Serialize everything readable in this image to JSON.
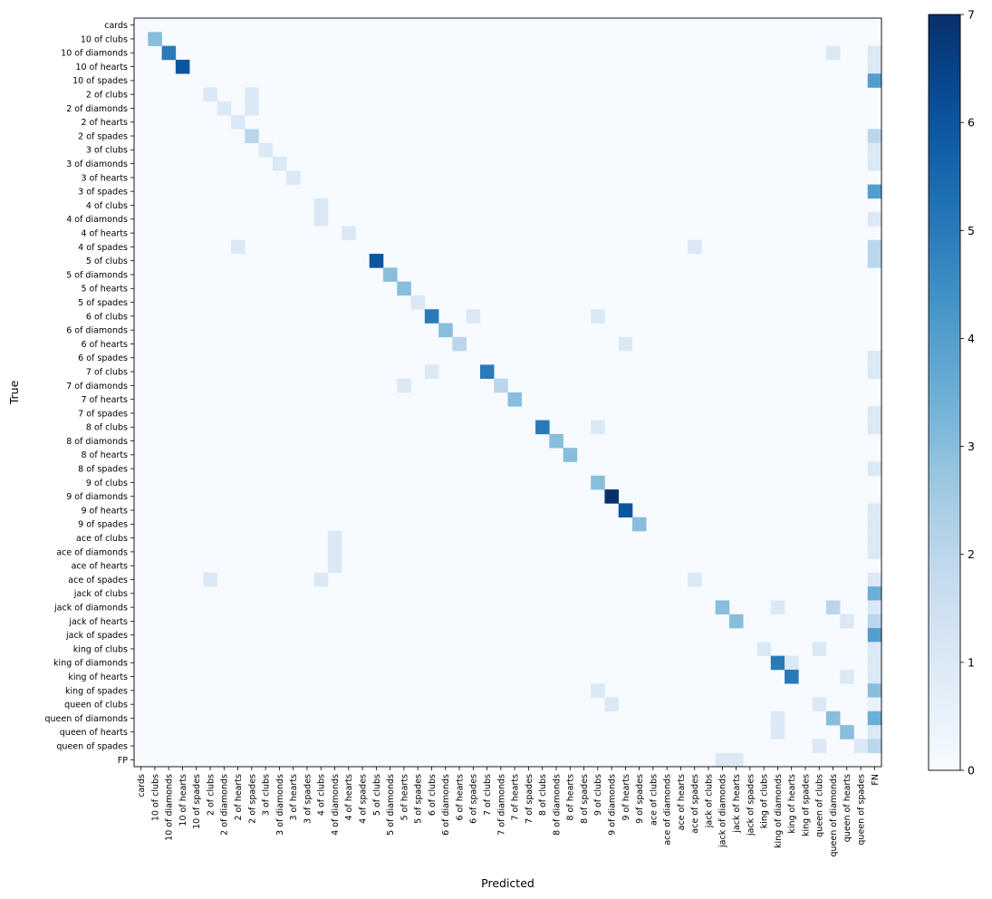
{
  "chart_data": {
    "type": "heatmap",
    "title": "",
    "xlabel": "Predicted",
    "ylabel": "True",
    "colormap": "Blues",
    "color_min": "#f7fbff",
    "color_max": "#08306b",
    "vmin": 0,
    "vmax": 7,
    "colorbar_ticks": [
      0,
      1,
      2,
      3,
      4,
      5,
      6,
      7
    ],
    "row_labels": [
      "cards",
      "10 of clubs",
      "10 of diamonds",
      "10 of hearts",
      "10 of spades",
      "2 of clubs",
      "2 of diamonds",
      "2 of hearts",
      "2 of spades",
      "3 of clubs",
      "3 of diamonds",
      "3 of hearts",
      "3 of spades",
      "4 of clubs",
      "4 of diamonds",
      "4 of hearts",
      "4 of spades",
      "5 of clubs",
      "5 of diamonds",
      "5 of hearts",
      "5 of spades",
      "6 of clubs",
      "6 of diamonds",
      "6 of hearts",
      "6 of spades",
      "7 of clubs",
      "7 of diamonds",
      "7 of hearts",
      "7 of spades",
      "8 of clubs",
      "8 of diamonds",
      "8 of hearts",
      "8 of spades",
      "9 of clubs",
      "9 of diamonds",
      "9 of hearts",
      "9 of spades",
      "ace of clubs",
      "ace of diamonds",
      "ace of hearts",
      "ace of spades",
      "jack  of clubs",
      "jack of diamonds",
      "jack of hearts",
      "jack of spades",
      "king of clubs",
      "king of diamonds",
      "king of hearts",
      "king of spades",
      "queen of clubs",
      "queen of diamonds",
      "queen of hearts",
      "queen of spades",
      "FP"
    ],
    "col_labels": [
      "cards",
      "10 of clubs",
      "10 of diamonds",
      "10 of hearts",
      "10 of spades",
      "2 of clubs",
      "2 of diamonds",
      "2 of hearts",
      "2 of spades",
      "3 of clubs",
      "3 of diamonds",
      "3 of hearts",
      "3 of spades",
      "4 of clubs",
      "4 of diamonds",
      "4 of hearts",
      "4 of spades",
      "5 of clubs",
      "5 of diamonds",
      "5 of hearts",
      "5 of spades",
      "6 of clubs",
      "6 of diamonds",
      "6 of hearts",
      "6 of spades",
      "7 of clubs",
      "7 of diamonds",
      "7 of hearts",
      "7 of spades",
      "8 of clubs",
      "8 of diamonds",
      "8 of hearts",
      "8 of spades",
      "9 of clubs",
      "9 of diamonds",
      "9 of hearts",
      "9 of spades",
      "ace of clubs",
      "ace of diamonds",
      "ace of hearts",
      "ace of spades",
      "jack  of clubs",
      "jack of diamonds",
      "jack of hearts",
      "jack of spades",
      "king of clubs",
      "king of diamonds",
      "king of hearts",
      "king of spades",
      "queen of clubs",
      "queen of diamonds",
      "queen of hearts",
      "queen of spades",
      "FN"
    ],
    "cells": [
      {
        "row": 1,
        "col": 1,
        "value": 3
      },
      {
        "row": 2,
        "col": 2,
        "value": 5
      },
      {
        "row": 2,
        "col": 50,
        "value": 1
      },
      {
        "row": 2,
        "col": 53,
        "value": 1
      },
      {
        "row": 3,
        "col": 3,
        "value": 6
      },
      {
        "row": 3,
        "col": 53,
        "value": 1
      },
      {
        "row": 4,
        "col": 53,
        "value": 4
      },
      {
        "row": 5,
        "col": 5,
        "value": 1
      },
      {
        "row": 5,
        "col": 8,
        "value": 1
      },
      {
        "row": 6,
        "col": 6,
        "value": 1
      },
      {
        "row": 6,
        "col": 8,
        "value": 1
      },
      {
        "row": 7,
        "col": 7,
        "value": 1
      },
      {
        "row": 8,
        "col": 8,
        "value": 2
      },
      {
        "row": 8,
        "col": 53,
        "value": 2
      },
      {
        "row": 9,
        "col": 9,
        "value": 1
      },
      {
        "row": 9,
        "col": 53,
        "value": 1
      },
      {
        "row": 10,
        "col": 10,
        "value": 1
      },
      {
        "row": 10,
        "col": 53,
        "value": 1
      },
      {
        "row": 11,
        "col": 11,
        "value": 1
      },
      {
        "row": 12,
        "col": 53,
        "value": 4
      },
      {
        "row": 13,
        "col": 13,
        "value": 1
      },
      {
        "row": 14,
        "col": 13,
        "value": 1
      },
      {
        "row": 14,
        "col": 53,
        "value": 1
      },
      {
        "row": 15,
        "col": 15,
        "value": 1
      },
      {
        "row": 16,
        "col": 7,
        "value": 1
      },
      {
        "row": 16,
        "col": 40,
        "value": 1
      },
      {
        "row": 16,
        "col": 53,
        "value": 2
      },
      {
        "row": 17,
        "col": 17,
        "value": 6
      },
      {
        "row": 17,
        "col": 53,
        "value": 2
      },
      {
        "row": 18,
        "col": 18,
        "value": 3
      },
      {
        "row": 19,
        "col": 19,
        "value": 3
      },
      {
        "row": 20,
        "col": 20,
        "value": 1
      },
      {
        "row": 21,
        "col": 21,
        "value": 5
      },
      {
        "row": 21,
        "col": 24,
        "value": 1
      },
      {
        "row": 21,
        "col": 33,
        "value": 1
      },
      {
        "row": 22,
        "col": 22,
        "value": 3
      },
      {
        "row": 23,
        "col": 23,
        "value": 2
      },
      {
        "row": 23,
        "col": 35,
        "value": 1
      },
      {
        "row": 24,
        "col": 53,
        "value": 1
      },
      {
        "row": 25,
        "col": 21,
        "value": 1
      },
      {
        "row": 25,
        "col": 25,
        "value": 5
      },
      {
        "row": 25,
        "col": 53,
        "value": 1
      },
      {
        "row": 26,
        "col": 19,
        "value": 1
      },
      {
        "row": 26,
        "col": 26,
        "value": 2
      },
      {
        "row": 27,
        "col": 27,
        "value": 3
      },
      {
        "row": 28,
        "col": 53,
        "value": 1
      },
      {
        "row": 29,
        "col": 29,
        "value": 5
      },
      {
        "row": 29,
        "col": 33,
        "value": 1
      },
      {
        "row": 29,
        "col": 53,
        "value": 1
      },
      {
        "row": 30,
        "col": 30,
        "value": 3
      },
      {
        "row": 31,
        "col": 31,
        "value": 3
      },
      {
        "row": 32,
        "col": 53,
        "value": 1
      },
      {
        "row": 33,
        "col": 33,
        "value": 3
      },
      {
        "row": 34,
        "col": 34,
        "value": 7
      },
      {
        "row": 35,
        "col": 35,
        "value": 6
      },
      {
        "row": 35,
        "col": 53,
        "value": 1
      },
      {
        "row": 36,
        "col": 36,
        "value": 3
      },
      {
        "row": 36,
        "col": 53,
        "value": 1
      },
      {
        "row": 37,
        "col": 14,
        "value": 1
      },
      {
        "row": 37,
        "col": 53,
        "value": 1
      },
      {
        "row": 38,
        "col": 14,
        "value": 1
      },
      {
        "row": 38,
        "col": 53,
        "value": 1
      },
      {
        "row": 39,
        "col": 14,
        "value": 1
      },
      {
        "row": 40,
        "col": 5,
        "value": 1
      },
      {
        "row": 40,
        "col": 13,
        "value": 1
      },
      {
        "row": 40,
        "col": 40,
        "value": 1
      },
      {
        "row": 40,
        "col": 53,
        "value": 1
      },
      {
        "row": 41,
        "col": 53,
        "value": 3.5
      },
      {
        "row": 42,
        "col": 42,
        "value": 3
      },
      {
        "row": 42,
        "col": 46,
        "value": 1
      },
      {
        "row": 42,
        "col": 50,
        "value": 2
      },
      {
        "row": 42,
        "col": 53,
        "value": 1
      },
      {
        "row": 43,
        "col": 43,
        "value": 3
      },
      {
        "row": 43,
        "col": 51,
        "value": 1
      },
      {
        "row": 43,
        "col": 53,
        "value": 2
      },
      {
        "row": 44,
        "col": 53,
        "value": 4
      },
      {
        "row": 45,
        "col": 45,
        "value": 1
      },
      {
        "row": 45,
        "col": 49,
        "value": 1
      },
      {
        "row": 45,
        "col": 53,
        "value": 1
      },
      {
        "row": 46,
        "col": 46,
        "value": 5
      },
      {
        "row": 46,
        "col": 47,
        "value": 1
      },
      {
        "row": 46,
        "col": 53,
        "value": 1
      },
      {
        "row": 47,
        "col": 47,
        "value": 5
      },
      {
        "row": 47,
        "col": 51,
        "value": 1
      },
      {
        "row": 47,
        "col": 53,
        "value": 1
      },
      {
        "row": 48,
        "col": 33,
        "value": 1
      },
      {
        "row": 48,
        "col": 53,
        "value": 3
      },
      {
        "row": 49,
        "col": 34,
        "value": 1
      },
      {
        "row": 49,
        "col": 49,
        "value": 1
      },
      {
        "row": 49,
        "col": 53,
        "value": 0.5
      },
      {
        "row": 50,
        "col": 46,
        "value": 1
      },
      {
        "row": 50,
        "col": 50,
        "value": 3
      },
      {
        "row": 50,
        "col": 53,
        "value": 3.5
      },
      {
        "row": 51,
        "col": 46,
        "value": 1
      },
      {
        "row": 51,
        "col": 51,
        "value": 3
      },
      {
        "row": 51,
        "col": 53,
        "value": 1
      },
      {
        "row": 52,
        "col": 49,
        "value": 1
      },
      {
        "row": 52,
        "col": 52,
        "value": 1
      },
      {
        "row": 52,
        "col": 53,
        "value": 2
      },
      {
        "row": 53,
        "col": 42,
        "value": 1
      },
      {
        "row": 53,
        "col": 43,
        "value": 1
      }
    ]
  }
}
